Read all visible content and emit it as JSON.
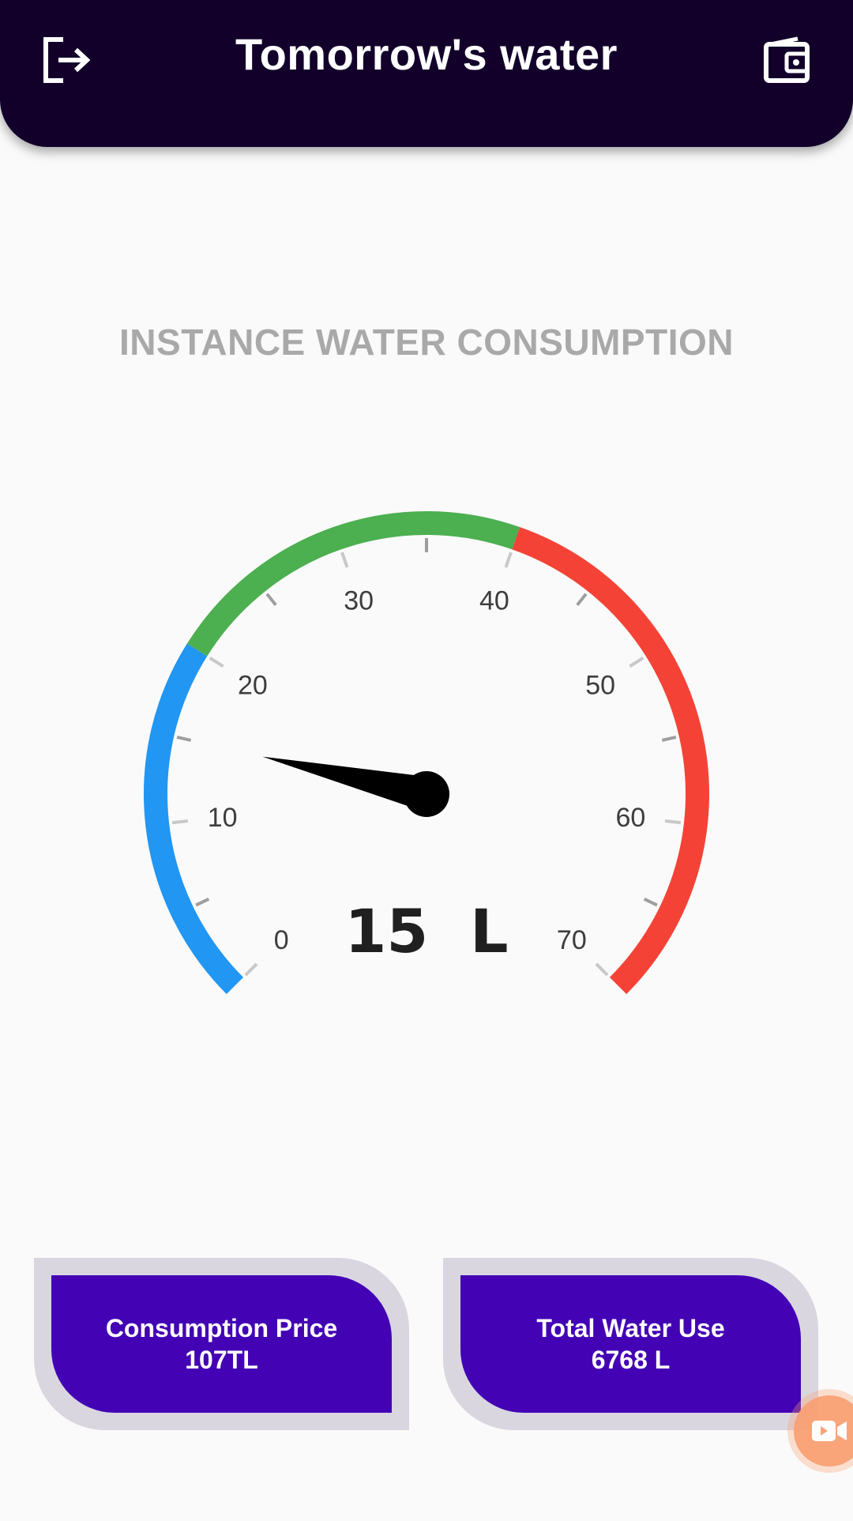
{
  "app_bar": {
    "title": "Tomorrow's water",
    "left_icon": "logout-icon",
    "right_icon": "wallet-icon"
  },
  "gauge": {
    "heading": "INSTANCE WATER CONSUMPTION",
    "min": 0,
    "max": 70,
    "value": 15,
    "value_label": "15  L",
    "tick_labels": [
      "0",
      "10",
      "20",
      "30",
      "40",
      "50",
      "60",
      "70"
    ],
    "ranges": [
      {
        "from": 0,
        "to": 20,
        "color": "#2196f3"
      },
      {
        "from": 20,
        "to": 40,
        "color": "#4caf50"
      },
      {
        "from": 40,
        "to": 70,
        "color": "#f44336"
      }
    ],
    "needle_color": "#000000"
  },
  "cards": [
    {
      "label": "Consumption Price",
      "value": "107TL"
    },
    {
      "label": "Total Water Use",
      "value": "6768 L"
    }
  ],
  "colors": {
    "app_bar_bg": "#12002a",
    "card_bg": "#4303b5",
    "card_border": "#d9d6e0",
    "heading": "#a9a9a9"
  },
  "floating_button_icon": "video-camera-icon"
}
